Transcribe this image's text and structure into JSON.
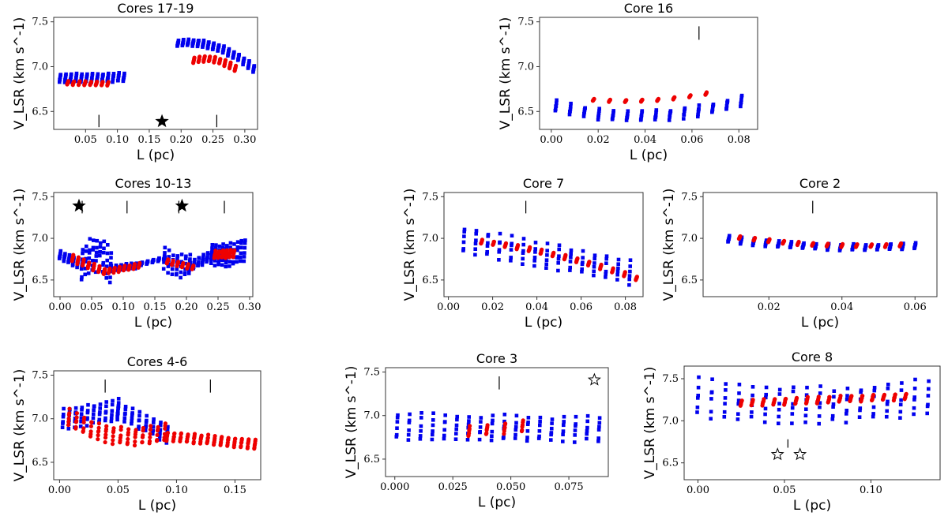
{
  "chart_data": [
    {
      "type": "scatter",
      "title": "Cores 17-19",
      "xlabel": "L (pc)",
      "ylabel": "V_LSR (km s^-1)",
      "xlim": [
        0.0,
        0.32
      ],
      "ylim": [
        6.3,
        7.55
      ],
      "xticks": [
        0.05,
        0.1,
        0.15,
        0.2,
        0.25,
        0.3
      ],
      "xtick_labels": [
        "0.05",
        "0.10",
        "0.15",
        "0.20",
        "0.25",
        "0.30"
      ],
      "yticks": [
        6.5,
        7.0,
        7.5
      ],
      "ytick_labels": [
        "6.5",
        "7.0",
        "7.5"
      ],
      "core_markers": [
        0.071,
        0.256
      ],
      "filled_stars": [
        [
          0.17,
          6.39
        ]
      ],
      "open_stars": [],
      "series": [
        {
          "name": "blue",
          "color": "#0000ee",
          "marker": "square",
          "segments": [
            {
              "start": [
                0.01,
                6.87
              ],
              "end": [
                0.11,
                6.88
              ],
              "strips": 13,
              "spread": 0.07,
              "tilt": 0.09
            },
            {
              "start": [
                0.195,
                7.26
              ],
              "end": [
                0.314,
                6.98
              ],
              "strips": 16,
              "spread": 0.06,
              "tilt": 0.05,
              "sag": 0.1
            }
          ]
        },
        {
          "name": "red",
          "color": "#ee0000",
          "marker": "circle",
          "segments": [
            {
              "start": [
                0.022,
                6.82
              ],
              "end": [
                0.085,
                6.81
              ],
              "strips": 8,
              "spread": 0.035,
              "tilt": 0.02
            },
            {
              "start": [
                0.22,
                7.07
              ],
              "end": [
                0.285,
                6.98
              ],
              "strips": 9,
              "spread": 0.05,
              "tilt": 0.03,
              "sag": 0.05
            }
          ]
        }
      ]
    },
    {
      "type": "scatter",
      "title": "Core 16",
      "xlabel": "L (pc)",
      "ylabel": "V_LSR (km s^-1)",
      "xlim": [
        -0.005,
        0.088
      ],
      "ylim": [
        6.3,
        7.55
      ],
      "xticks": [
        0.0,
        0.02,
        0.04,
        0.06,
        0.08
      ],
      "xtick_labels": [
        "0.00",
        "0.02",
        "0.04",
        "0.06",
        "0.08"
      ],
      "yticks": [
        6.5,
        7.0,
        7.5
      ],
      "ytick_labels": [
        "6.5",
        "7.0",
        "7.5"
      ],
      "core_markers": [
        0.063
      ],
      "filled_stars": [],
      "open_stars": [],
      "series": [
        {
          "name": "blue",
          "color": "#0000ee",
          "marker": "square",
          "segments": [
            {
              "start": [
                0.002,
                6.56
              ],
              "end": [
                0.081,
                6.62
              ],
              "strips": 14,
              "spread": 0.1,
              "tilt": 0.04,
              "sag": -0.14
            }
          ]
        },
        {
          "name": "red",
          "color": "#ee0000",
          "marker": "circle",
          "segments": [
            {
              "start": [
                0.018,
                6.63
              ],
              "end": [
                0.066,
                6.7
              ],
              "strips": 8,
              "spread": 0.02,
              "tilt": 0.01,
              "sag": -0.04
            }
          ]
        }
      ]
    },
    {
      "type": "scatter",
      "title": "Cores 10-13",
      "xlabel": "L (pc)",
      "ylabel": "V_LSR (km s^-1)",
      "xlim": [
        -0.01,
        0.305
      ],
      "ylim": [
        6.3,
        7.55
      ],
      "xticks": [
        0.0,
        0.05,
        0.1,
        0.15,
        0.2,
        0.25,
        0.3
      ],
      "xtick_labels": [
        "0.00",
        "0.05",
        "0.10",
        "0.15",
        "0.20",
        "0.25",
        "0.30"
      ],
      "yticks": [
        6.5,
        7.0,
        7.5
      ],
      "ytick_labels": [
        "6.5",
        "7.0",
        "7.5"
      ],
      "core_markers": [
        0.035,
        0.106,
        0.188,
        0.26
      ],
      "filled_stars": [
        [
          0.03,
          7.39
        ],
        [
          0.193,
          7.39
        ]
      ],
      "open_stars": [],
      "series": [
        {
          "name": "blue",
          "color": "#0000ee",
          "marker": "square",
          "segments": [
            {
              "start": [
                0.0,
                6.8
              ],
              "end": [
                0.035,
                6.68
              ],
              "strips": 6,
              "spread": 0.08,
              "tilt": 0.05
            },
            {
              "start": [
                0.035,
                6.68
              ],
              "end": [
                0.08,
                6.64
              ],
              "strips": 9,
              "spread": 0.3,
              "tilt": 0.3,
              "sag": 0.15
            },
            {
              "start": [
                0.08,
                6.64
              ],
              "end": [
                0.12,
                6.67
              ],
              "strips": 6,
              "spread": 0.06,
              "tilt": 0.03
            },
            {
              "start": [
                0.12,
                6.68
              ],
              "end": [
                0.165,
                6.76
              ],
              "strips": 6,
              "spread": 0.03,
              "tilt": 0.02
            },
            {
              "start": [
                0.165,
                6.76
              ],
              "end": [
                0.205,
                6.68
              ],
              "strips": 7,
              "spread": 0.2,
              "tilt": 0.2,
              "sag": -0.05
            },
            {
              "start": [
                0.205,
                6.66
              ],
              "end": [
                0.24,
                6.8
              ],
              "strips": 6,
              "spread": 0.1,
              "tilt": 0.05
            },
            {
              "start": [
                0.24,
                6.82
              ],
              "end": [
                0.292,
                6.87
              ],
              "strips": 10,
              "spread": 0.22,
              "tilt": 0.1,
              "sag": -0.05
            }
          ]
        },
        {
          "name": "red",
          "color": "#ee0000",
          "marker": "circle",
          "segments": [
            {
              "start": [
                0.02,
                6.76
              ],
              "end": [
                0.07,
                6.6
              ],
              "strips": 7,
              "spread": 0.06,
              "tilt": 0.05
            },
            {
              "start": [
                0.07,
                6.6
              ],
              "end": [
                0.125,
                6.67
              ],
              "strips": 8,
              "spread": 0.05,
              "tilt": 0.03
            },
            {
              "start": [
                0.17,
                6.72
              ],
              "end": [
                0.21,
                6.65
              ],
              "strips": 6,
              "spread": 0.04,
              "tilt": 0.03
            },
            {
              "start": [
                0.245,
                6.8
              ],
              "end": [
                0.275,
                6.82
              ],
              "strips": 6,
              "spread": 0.08,
              "tilt": 0.05
            }
          ]
        }
      ]
    },
    {
      "type": "scatter",
      "title": "Core 7",
      "xlabel": "L (pc)",
      "ylabel": "V_LSR (km s^-1)",
      "xlim": [
        -0.002,
        0.088
      ],
      "ylim": [
        6.3,
        7.55
      ],
      "xticks": [
        0.0,
        0.02,
        0.04,
        0.06,
        0.08
      ],
      "xtick_labels": [
        "0.00",
        "0.02",
        "0.04",
        "0.06",
        "0.08"
      ],
      "yticks": [
        6.5,
        7.0,
        7.5
      ],
      "ytick_labels": [
        "6.5",
        "7.0",
        "7.5"
      ],
      "core_markers": [
        0.035
      ],
      "filled_stars": [],
      "open_stars": [],
      "series": [
        {
          "name": "blue",
          "color": "#0000ee",
          "marker": "square",
          "segments": [
            {
              "start": [
                0.007,
                6.98
              ],
              "end": [
                0.082,
                6.6
              ],
              "strips": 15,
              "spread": 0.22,
              "tilt": 0.25
            }
          ]
        },
        {
          "name": "red",
          "color": "#ee0000",
          "marker": "circle",
          "segments": [
            {
              "start": [
                0.015,
                6.96
              ],
              "end": [
                0.085,
                6.52
              ],
              "strips": 14,
              "spread": 0.04,
              "tilt": 0.03,
              "sag": 0.05
            }
          ]
        }
      ]
    },
    {
      "type": "scatter",
      "title": "Core 2",
      "xlabel": "L (pc)",
      "ylabel": "V_LSR (km s^-1)",
      "xlim": [
        0.002,
        0.066
      ],
      "ylim": [
        6.3,
        7.55
      ],
      "xticks": [
        0.02,
        0.04,
        0.06
      ],
      "xtick_labels": [
        "0.02",
        "0.04",
        "0.06"
      ],
      "yticks": [
        6.5,
        7.0,
        7.5
      ],
      "ytick_labels": [
        "6.5",
        "7.0",
        "7.5"
      ],
      "core_markers": [
        0.032
      ],
      "filled_stars": [],
      "open_stars": [],
      "series": [
        {
          "name": "blue",
          "color": "#0000ee",
          "marker": "square",
          "segments": [
            {
              "start": [
                0.009,
                6.99
              ],
              "end": [
                0.06,
                6.91
              ],
              "strips": 16,
              "spread": 0.06,
              "tilt": 0.04,
              "sag": -0.05
            }
          ]
        },
        {
          "name": "red",
          "color": "#ee0000",
          "marker": "circle",
          "segments": [
            {
              "start": [
                0.012,
                7.01
              ],
              "end": [
                0.056,
                6.92
              ],
              "strips": 12,
              "spread": 0.03,
              "tilt": 0.02,
              "sag": -0.04
            }
          ]
        }
      ]
    },
    {
      "type": "scatter",
      "title": "Cores 4-6",
      "xlabel": "L (pc)",
      "ylabel": "V_LSR (km s^-1)",
      "xlim": [
        -0.005,
        0.172
      ],
      "ylim": [
        6.3,
        7.55
      ],
      "xticks": [
        0.0,
        0.05,
        0.1,
        0.15
      ],
      "xtick_labels": [
        "0.00",
        "0.05",
        "0.10",
        "0.15"
      ],
      "yticks": [
        6.5,
        7.0,
        7.5
      ],
      "ytick_labels": [
        "6.5",
        "7.0",
        "7.5"
      ],
      "core_markers": [
        0.039,
        0.129
      ],
      "filled_stars": [],
      "open_stars": [],
      "series": [
        {
          "name": "blue",
          "color": "#0000ee",
          "marker": "square",
          "segments": [
            {
              "start": [
                0.003,
                7.0
              ],
              "end": [
                0.05,
                7.1
              ],
              "strips": 10,
              "spread": 0.18,
              "tilt": 0.18
            },
            {
              "start": [
                0.05,
                7.1
              ],
              "end": [
                0.092,
                6.82
              ],
              "strips": 8,
              "spread": 0.15,
              "tilt": 0.15
            }
          ]
        },
        {
          "name": "red",
          "color": "#ee0000",
          "marker": "circle",
          "segments": [
            {
              "start": [
                0.008,
                7.01
              ],
              "end": [
                0.09,
                6.85
              ],
              "strips": 14,
              "spread": 0.15,
              "tilt": 0.15,
              "sag": -0.12
            },
            {
              "start": [
                0.092,
                6.8
              ],
              "end": [
                0.167,
                6.71
              ],
              "strips": 14,
              "spread": 0.08,
              "tilt": 0.08
            }
          ]
        }
      ]
    },
    {
      "type": "scatter",
      "title": "Core 3",
      "xlabel": "L (pc)",
      "ylabel": "V_LSR (km s^-1)",
      "xlim": [
        -0.004,
        0.092
      ],
      "ylim": [
        6.3,
        7.55
      ],
      "xticks": [
        0.0,
        0.025,
        0.05,
        0.075
      ],
      "xtick_labels": [
        "0.000",
        "0.025",
        "0.050",
        "0.075"
      ],
      "yticks": [
        6.5,
        7.0,
        7.5
      ],
      "ytick_labels": [
        "6.5",
        "7.0",
        "7.5"
      ],
      "core_markers": [
        0.045
      ],
      "filled_stars": [],
      "open_stars": [
        [
          0.086,
          7.41
        ]
      ],
      "series": [
        {
          "name": "blue",
          "color": "#0000ee",
          "marker": "square",
          "segments": [
            {
              "start": [
                0.001,
                6.88
              ],
              "end": [
                0.088,
                6.84
              ],
              "strips": 18,
              "spread": 0.22,
              "tilt": 0.24
            }
          ]
        },
        {
          "name": "red",
          "color": "#ee0000",
          "marker": "circle",
          "segments": [
            {
              "start": [
                0.032,
                6.82
              ],
              "end": [
                0.055,
                6.88
              ],
              "strips": 4,
              "spread": 0.1,
              "tilt": 0.1
            }
          ]
        }
      ]
    },
    {
      "type": "scatter",
      "title": "Core 8",
      "xlabel": "L (pc)",
      "ylabel": "V_LSR (km s^-1)",
      "xlim": [
        -0.008,
        0.14
      ],
      "ylim": [
        6.3,
        7.65
      ],
      "xticks": [
        0.0,
        0.05,
        0.1
      ],
      "xtick_labels": [
        "0.00",
        "0.05",
        "0.10"
      ],
      "yticks": [
        6.5,
        7.0,
        7.5
      ],
      "ytick_labels": [
        "6.5",
        "7.0",
        "7.5"
      ],
      "core_markers": [
        0.052
      ],
      "filled_stars": [],
      "open_stars": [
        [
          0.046,
          6.6
        ],
        [
          0.059,
          6.6
        ]
      ],
      "series": [
        {
          "name": "blue",
          "color": "#0000ee",
          "marker": "square",
          "segments": [
            {
              "start": [
                0.0,
                7.28
              ],
              "end": [
                0.133,
                7.27
              ],
              "strips": 18,
              "spread": 0.33,
              "tilt": 0.32,
              "sag": -0.08
            }
          ]
        },
        {
          "name": "red",
          "color": "#ee0000",
          "marker": "circle",
          "segments": [
            {
              "start": [
                0.025,
                7.21
              ],
              "end": [
                0.12,
                7.29
              ],
              "strips": 16,
              "spread": 0.06,
              "tilt": 0.05
            }
          ]
        }
      ]
    }
  ]
}
